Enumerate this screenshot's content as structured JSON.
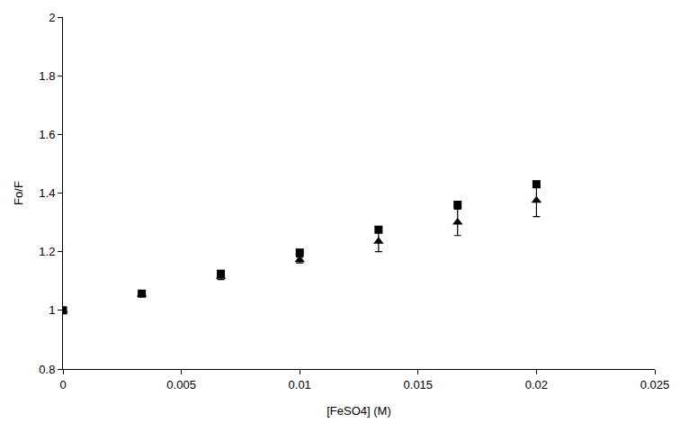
{
  "chart_data": {
    "type": "scatter",
    "x_label": "[FeSO4] (M)",
    "y_label": "Fo/F",
    "xlim": [
      0,
      0.025
    ],
    "xticks": [
      0,
      0.005,
      0.01,
      0.015,
      0.02,
      0.025
    ],
    "ylim": [
      0.8,
      2
    ],
    "yticks": [
      0.8,
      1,
      1.2,
      1.4,
      1.6,
      1.8,
      2
    ],
    "grid": false,
    "series": [
      {
        "color": "#000000",
        "marker": "triangle",
        "x": [
          0,
          0.00333,
          0.00667,
          0.01,
          0.01333,
          0.01667,
          0.02
        ],
        "values": [
          1.0,
          1.055,
          1.115,
          1.172,
          1.235,
          1.3,
          1.375
        ],
        "errors": [
          0.0,
          0.005,
          0.01,
          0.01,
          0.035,
          0.045,
          0.055
        ]
      },
      {
        "color": "#000000",
        "marker": "square",
        "x": [
          0,
          0.00333,
          0.00667,
          0.01,
          0.01333,
          0.01667,
          0.02
        ],
        "values": [
          1.0,
          1.057,
          1.125,
          1.197,
          1.275,
          1.36,
          1.43
        ],
        "errors": [
          0.0,
          0.005,
          0.008,
          0.008,
          0.008,
          0.01,
          0.01
        ]
      }
    ]
  }
}
